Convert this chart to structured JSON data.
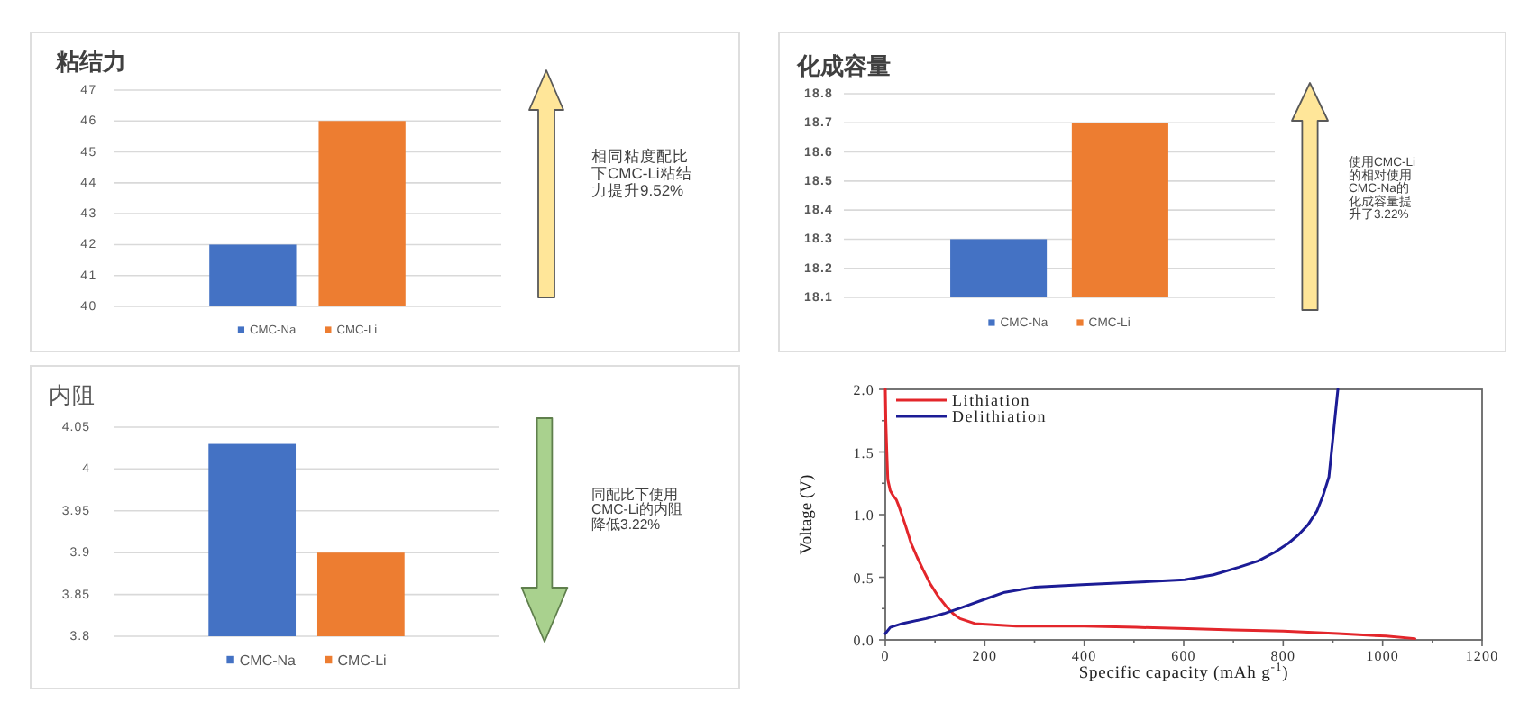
{
  "chart_data": [
    {
      "type": "bar",
      "title": "粘结力",
      "categories": [
        null
      ],
      "series": [
        {
          "name": "CMC-Na",
          "color": "#4472c4",
          "values": [
            42
          ]
        },
        {
          "name": "CMC-Li",
          "color": "#ed7d31",
          "values": [
            46
          ]
        }
      ],
      "ylim": [
        40,
        47
      ],
      "yticks": [
        40,
        41,
        42,
        43,
        44,
        45,
        46,
        47
      ],
      "grid": "y",
      "legend": "bottom",
      "annotations": [
        "相同粘度配比下CMC-Li粘结力提升9.52%"
      ]
    },
    {
      "type": "bar",
      "title": "化成容量",
      "categories": [
        null
      ],
      "series": [
        {
          "name": "CMC-Na",
          "color": "#4472c4",
          "values": [
            18.3
          ]
        },
        {
          "name": "CMC-Li",
          "color": "#ed7d31",
          "values": [
            18.7
          ]
        }
      ],
      "ylim": [
        18.1,
        18.8
      ],
      "yticks": [
        18.1,
        18.2,
        18.3,
        18.4,
        18.5,
        18.6,
        18.7,
        18.8
      ],
      "grid": "y",
      "legend": "bottom",
      "annotations": [
        "使用CMC-Li的相对使用CMC-Na的化成容量提升了3.22%"
      ]
    },
    {
      "type": "bar",
      "title": "内阻",
      "categories": [
        null
      ],
      "series": [
        {
          "name": "CMC-Na",
          "color": "#4472c4",
          "values": [
            4.03
          ]
        },
        {
          "name": "CMC-Li",
          "color": "#ed7d31",
          "values": [
            3.9
          ]
        }
      ],
      "ylim": [
        3.8,
        4.05
      ],
      "yticks": [
        3.8,
        3.85,
        3.9,
        3.95,
        4,
        4.05
      ],
      "grid": "y",
      "legend": "bottom",
      "annotations": [
        "同配比下使用CMC-Li的内阻降低3.22%"
      ]
    },
    {
      "type": "line",
      "xlabel": "Specific capacity (mAh g$^{-1}$)",
      "ylabel": "Voltage (V)",
      "xlim": [
        0,
        1200
      ],
      "ylim": [
        0,
        2
      ],
      "xticks": [
        0,
        {
          "value": 100,
          "label": null
        },
        200,
        {
          "value": 300,
          "label": null
        },
        400,
        {
          "value": 500,
          "label": null
        },
        600,
        {
          "value": 700,
          "label": null
        },
        800,
        {
          "value": 900,
          "label": null
        },
        1000,
        {
          "value": 1100,
          "label": null
        },
        1200
      ],
      "yticks": [
        {
          "value": 0,
          "label": "0.0"
        },
        {
          "value": 0.25,
          "label": null
        },
        {
          "value": 0.5,
          "label": "0.5"
        },
        {
          "value": 0.75,
          "label": null
        },
        {
          "value": 1,
          "label": "1.0"
        },
        {
          "value": 1.25,
          "label": null
        },
        {
          "value": 1.5,
          "label": "1.5"
        },
        {
          "value": 1.75,
          "label": null
        },
        {
          "value": 2,
          "label": "2.0"
        }
      ],
      "legend": "top left",
      "series": [
        {
          "name": "Lithiation",
          "color": "#e3262b",
          "x": [
            0,
            1,
            3,
            5,
            10,
            16,
            22,
            28,
            40,
            52,
            64,
            76,
            90,
            106,
            122,
            136,
            150,
            165,
            180,
            263,
            400,
            505,
            608,
            700,
            800,
            910,
            1007,
            1065
          ],
          "values": [
            2.0,
            1.75,
            1.5,
            1.28,
            1.19,
            1.15,
            1.12,
            1.06,
            0.92,
            0.77,
            0.66,
            0.56,
            0.45,
            0.35,
            0.27,
            0.21,
            0.17,
            0.15,
            0.13,
            0.11,
            0.11,
            0.1,
            0.09,
            0.08,
            0.07,
            0.05,
            0.03,
            0.01
          ]
        },
        {
          "name": "Delithiation",
          "color": "#1c1c96",
          "x": [
            0,
            10,
            34,
            82,
            118,
            155,
            197,
            240,
            300,
            396,
            505,
            602,
            660,
            711,
            750,
            783,
            810,
            831,
            850,
            868,
            880,
            892,
            901,
            910
          ],
          "values": [
            0.05,
            0.1,
            0.13,
            0.17,
            0.21,
            0.26,
            0.32,
            0.38,
            0.42,
            0.44,
            0.46,
            0.48,
            0.52,
            0.58,
            0.63,
            0.7,
            0.77,
            0.84,
            0.92,
            1.03,
            1.15,
            1.3,
            1.65,
            2.0
          ]
        }
      ]
    }
  ]
}
